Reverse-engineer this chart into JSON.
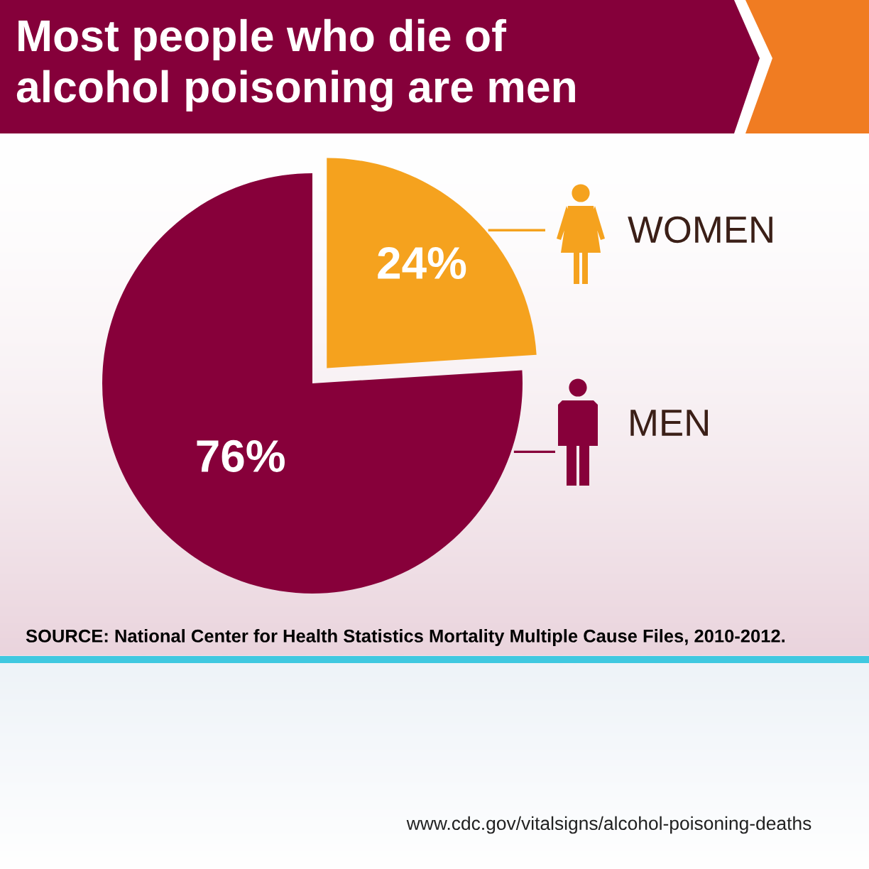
{
  "chart_data": {
    "type": "pie",
    "title": "Most people who die of\nalcohol poisoning are men",
    "categories": [
      "WOMEN",
      "MEN"
    ],
    "values": [
      24,
      76
    ],
    "colors": [
      "#f5a21e",
      "#87003a"
    ],
    "value_labels": [
      "24%",
      "76%"
    ],
    "legend": "right",
    "annotations": [
      "SOURCE: National Center for Health Statistics Mortality Multiple Cause Files, 2010-2012.",
      "www.cdc.gov/vitalsigns/alcohol-poisoning-deaths"
    ]
  }
}
